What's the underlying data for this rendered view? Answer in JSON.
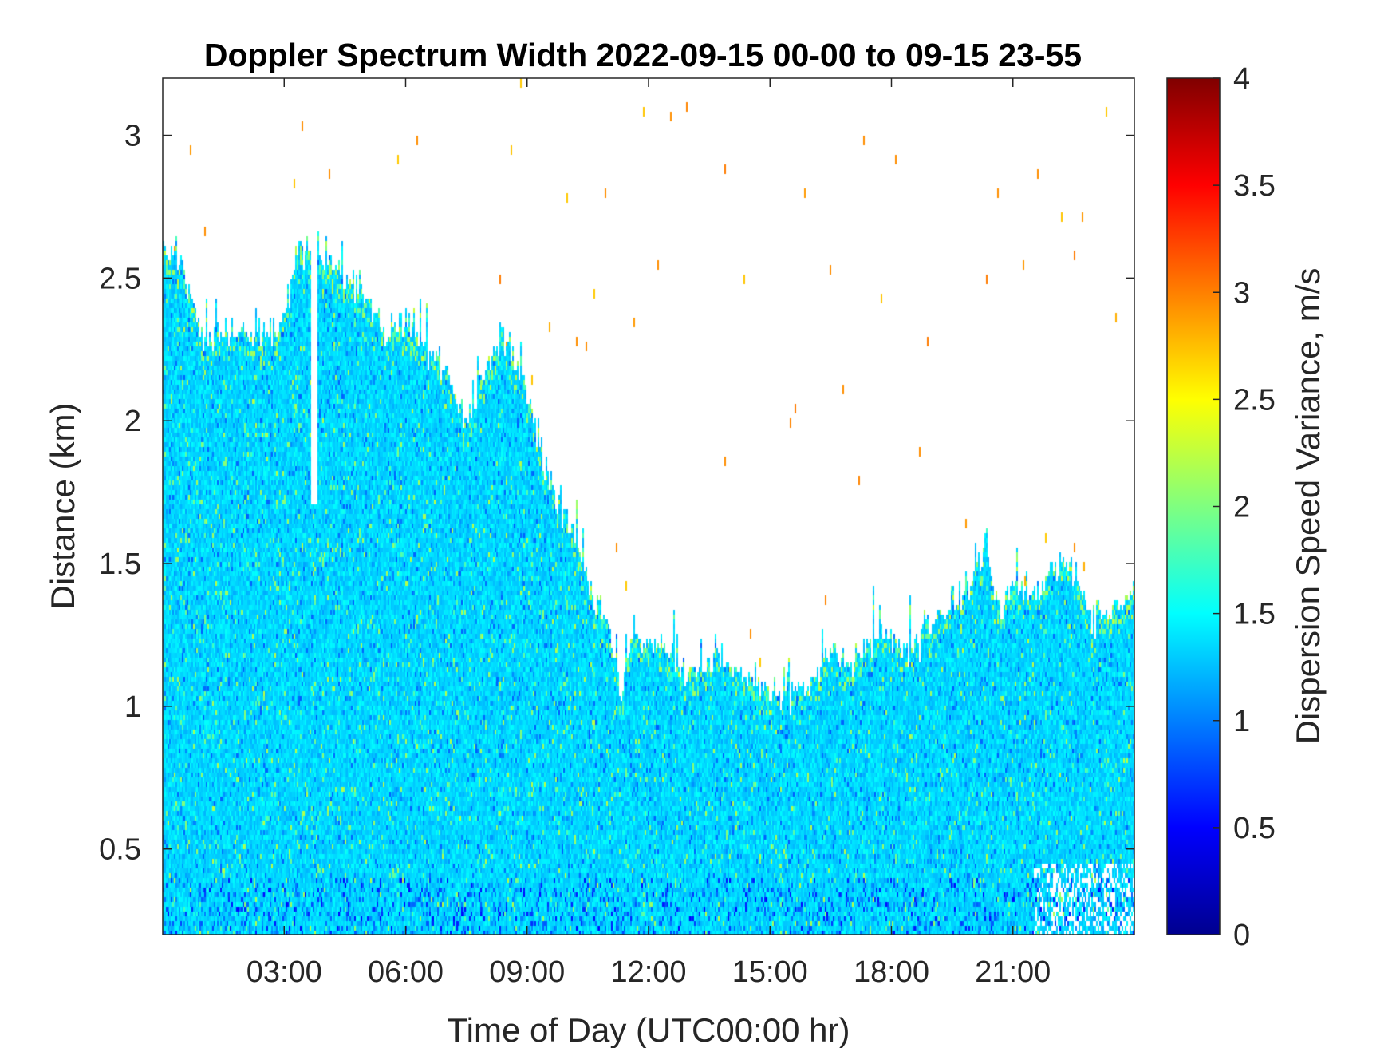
{
  "chart_data": {
    "type": "heatmap",
    "title": "Doppler Spectrum Width 2022-09-15 00-00 to 09-15 23-55",
    "xlabel": "Time of Day (UTC00:00 hr)",
    "ylabel": "Distance (km)",
    "colorbar_label": "Dispersion Speed Variance, m/s",
    "colormap": "jet",
    "x_unit": "hours",
    "xlim": [
      0,
      24
    ],
    "ylim": [
      0.2,
      3.2
    ],
    "clim": [
      0,
      4
    ],
    "x_ticks": [
      3,
      6,
      9,
      12,
      15,
      18,
      21
    ],
    "x_tick_labels": [
      "03:00",
      "06:00",
      "09:00",
      "12:00",
      "15:00",
      "18:00",
      "21:00"
    ],
    "y_ticks": [
      0.5,
      1,
      1.5,
      2,
      2.5,
      3
    ],
    "y_tick_labels": [
      "0.5",
      "1",
      "1.5",
      "2",
      "2.5",
      "3"
    ],
    "colorbar_ticks": [
      0,
      0.5,
      1,
      1.5,
      2,
      2.5,
      3,
      3.5,
      4
    ],
    "colorbar_tick_labels": [
      "0",
      "0.5",
      "1",
      "1.5",
      "2",
      "2.5",
      "3",
      "3.5",
      "4"
    ],
    "dominant_value": 1.35,
    "data_top_height_km": [
      [
        0,
        2.6
      ],
      [
        0.5,
        2.55
      ],
      [
        1,
        2.3
      ],
      [
        1.5,
        2.3
      ],
      [
        2,
        2.3
      ],
      [
        2.5,
        2.3
      ],
      [
        3,
        2.35
      ],
      [
        3.3,
        2.6
      ],
      [
        3.7,
        2.6
      ],
      [
        4.2,
        2.55
      ],
      [
        5,
        2.45
      ],
      [
        5.5,
        2.3
      ],
      [
        6,
        2.35
      ],
      [
        6.5,
        2.25
      ],
      [
        7,
        2.15
      ],
      [
        7.5,
        2.0
      ],
      [
        8,
        2.2
      ],
      [
        8.5,
        2.25
      ],
      [
        9,
        2.1
      ],
      [
        9.4,
        1.85
      ],
      [
        9.8,
        1.7
      ],
      [
        10.2,
        1.6
      ],
      [
        10.6,
        1.4
      ],
      [
        11,
        1.3
      ],
      [
        11.3,
        1.05
      ],
      [
        11.6,
        1.25
      ],
      [
        12,
        1.2
      ],
      [
        12.5,
        1.2
      ],
      [
        13,
        1.1
      ],
      [
        13.5,
        1.15
      ],
      [
        14,
        1.15
      ],
      [
        14.5,
        1.1
      ],
      [
        15,
        1.05
      ],
      [
        15.5,
        1.05
      ],
      [
        16,
        1.1
      ],
      [
        16.5,
        1.2
      ],
      [
        17,
        1.15
      ],
      [
        17.5,
        1.25
      ],
      [
        18,
        1.25
      ],
      [
        18.5,
        1.2
      ],
      [
        19,
        1.3
      ],
      [
        19.5,
        1.35
      ],
      [
        20,
        1.45
      ],
      [
        20.3,
        1.55
      ],
      [
        20.7,
        1.35
      ],
      [
        21.1,
        1.45
      ],
      [
        21.5,
        1.35
      ],
      [
        22,
        1.5
      ],
      [
        22.5,
        1.5
      ],
      [
        23,
        1.3
      ],
      [
        23.5,
        1.35
      ],
      [
        24,
        1.4
      ]
    ],
    "gaps": [
      {
        "x_hours": 3.75,
        "bottom_km": 1.7,
        "top_km": 2.65
      }
    ]
  }
}
